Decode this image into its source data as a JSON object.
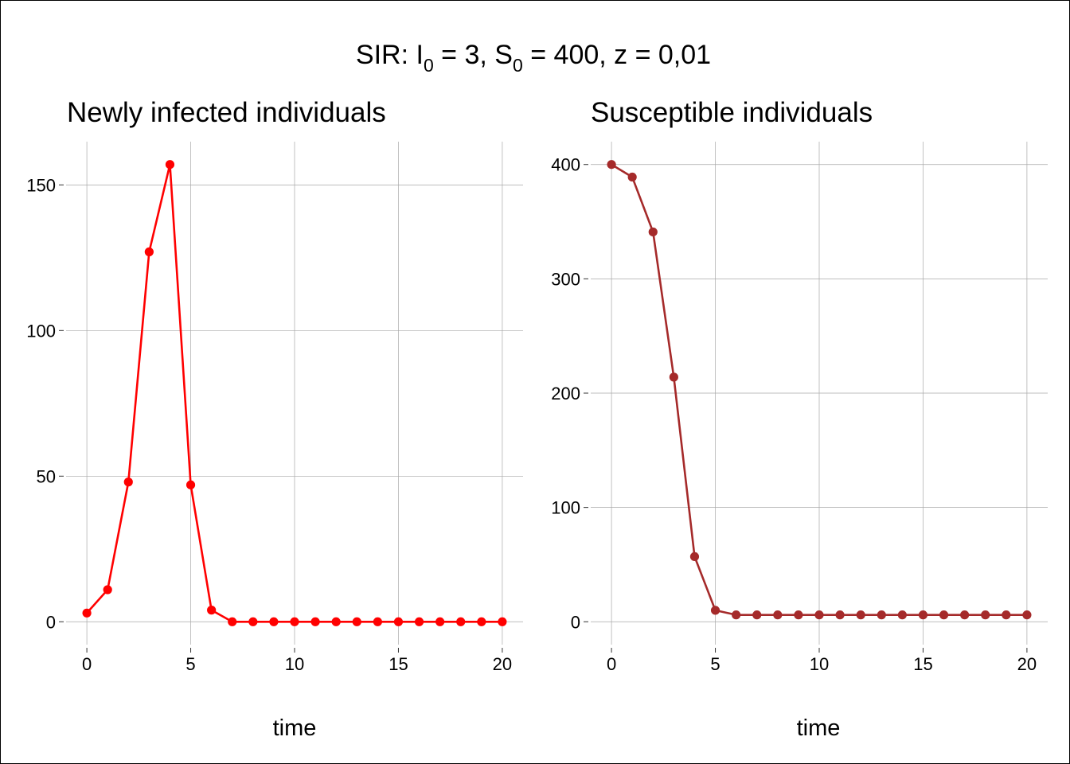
{
  "suptitle": {
    "prefix": "SIR:  ",
    "i_var": "I",
    "i_sub": "0",
    "i_eq": " = 3,  ",
    "s_var": "S",
    "s_sub": "0",
    "s_eq": " = 400,  z = 0,01"
  },
  "chart_data": [
    {
      "type": "line",
      "title": "Newly infected individuals",
      "xlabel": "time",
      "ylabel": "",
      "x": [
        0,
        1,
        2,
        3,
        4,
        5,
        6,
        7,
        8,
        9,
        10,
        11,
        12,
        13,
        14,
        15,
        16,
        17,
        18,
        19,
        20
      ],
      "values": [
        3,
        11,
        48,
        127,
        157,
        47,
        4,
        0,
        0,
        0,
        0,
        0,
        0,
        0,
        0,
        0,
        0,
        0,
        0,
        0,
        0
      ],
      "xlim": [
        -1,
        21
      ],
      "ylim": [
        -7.85,
        164.85
      ],
      "xticks": [
        0,
        5,
        10,
        15,
        20
      ],
      "yticks": [
        0,
        50,
        100,
        150
      ],
      "grid": true,
      "color": "#ff0000",
      "markers": true
    },
    {
      "type": "line",
      "title": "Susceptible individuals",
      "xlabel": "time",
      "ylabel": "",
      "x": [
        0,
        1,
        2,
        3,
        4,
        5,
        6,
        7,
        8,
        9,
        10,
        11,
        12,
        13,
        14,
        15,
        16,
        17,
        18,
        19,
        20
      ],
      "values": [
        400,
        389,
        341,
        214,
        57,
        10,
        6,
        6,
        6,
        6,
        6,
        6,
        6,
        6,
        6,
        6,
        6,
        6,
        6,
        6,
        6
      ],
      "xlim": [
        -1,
        21
      ],
      "ylim": [
        -20,
        420
      ],
      "xticks": [
        0,
        5,
        10,
        15,
        20
      ],
      "yticks": [
        0,
        100,
        200,
        300,
        400
      ],
      "grid": true,
      "color": "#a52a2a",
      "markers": true
    }
  ]
}
